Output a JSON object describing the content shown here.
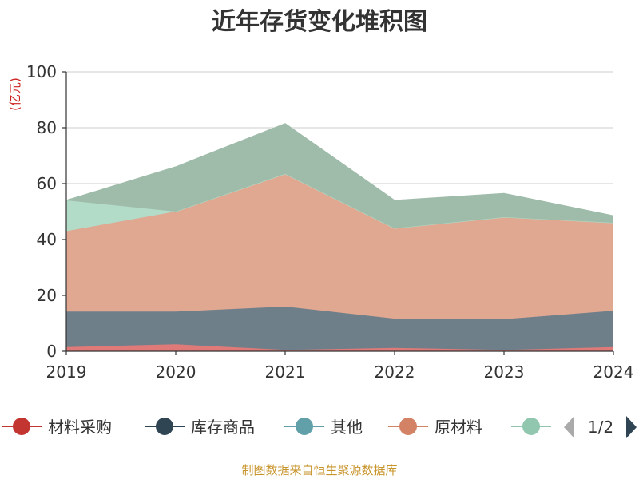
{
  "chart_data": {
    "type": "area",
    "stacked": true,
    "title": "近年存货变化堆积图",
    "ylabel": "(亿元)",
    "xlabel": "",
    "x": [
      "2019",
      "2020",
      "2021",
      "2022",
      "2023",
      "2024"
    ],
    "ylim": [
      0,
      100
    ],
    "yticks": [
      0,
      20,
      40,
      60,
      80,
      100
    ],
    "grid": true,
    "series": [
      {
        "name": "材料采购",
        "color": "#c23531",
        "fill": "#e07a78",
        "values": [
          1.5,
          2.5,
          0.5,
          1.2,
          0.5,
          1.5
        ]
      },
      {
        "name": "库存商品",
        "color": "#2f4554",
        "fill": "#6e7f8a",
        "values": [
          12.7,
          11.7,
          15.5,
          10.5,
          11.0,
          13.0
        ]
      },
      {
        "name": "其他",
        "color": "#61a0a8",
        "fill": "#8fbcc2",
        "values": [
          0,
          0,
          0,
          0,
          0,
          0
        ]
      },
      {
        "name": "原材料",
        "color": "#d48265",
        "fill": "#e0a791",
        "values": [
          28.8,
          35.8,
          47.5,
          32.3,
          36.5,
          31.5
        ]
      },
      {
        "name": "",
        "color": "#91c7ae",
        "fill": "#b2dbc8",
        "values": [
          11.0,
          0,
          0,
          0,
          0,
          0
        ]
      },
      {
        "name": "",
        "color": "#749f83",
        "fill": "#9fbcaa",
        "values": [
          0,
          16.0,
          18.0,
          10.0,
          8.5,
          2.5
        ]
      }
    ],
    "legend_placement": "bottom"
  },
  "legend": {
    "page_indicator": "1/2",
    "visible_count": 5
  },
  "footer": {
    "source": "制图数据来自恒生聚源数据库"
  }
}
